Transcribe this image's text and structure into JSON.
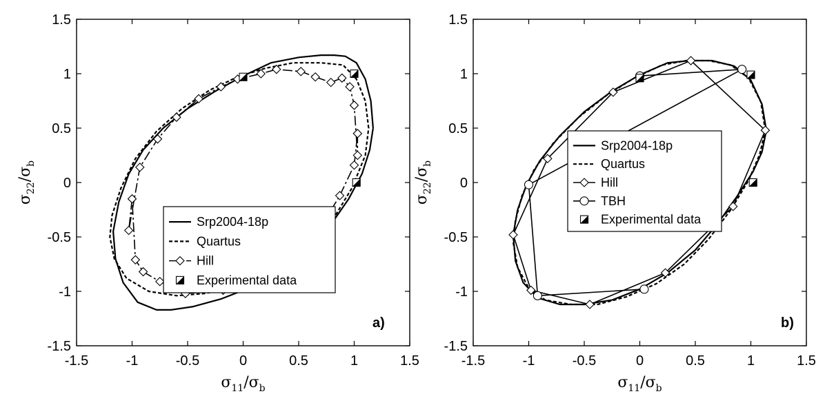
{
  "chart_data": [
    {
      "type": "line",
      "panel_label": "a)",
      "xlabel": "σ11/σb",
      "ylabel": "σ22/σb",
      "xlabel_parts": {
        "sym": "σ",
        "sub1": "11",
        "slash": "/σ",
        "sub2": "b"
      },
      "ylabel_parts": {
        "sym": "σ",
        "sub1": "22",
        "slash": "/σ",
        "sub2": "b"
      },
      "xlim": [
        -1.5,
        1.5
      ],
      "ylim": [
        -1.5,
        1.5
      ],
      "xticks": [
        "-1.5",
        "-1",
        "-0.5",
        "0",
        "0.5",
        "1",
        "1.5"
      ],
      "yticks": [
        "-1.5",
        "-1",
        "-0.5",
        "0",
        "0.5",
        "1",
        "1.5"
      ],
      "grid": false,
      "legend_position": "center-right",
      "series": [
        {
          "name": "Srp2004-18p",
          "style": "solid",
          "marker": "none",
          "x": [
            1.17,
            1.15,
            1.1,
            1.02,
            0.92,
            0.82,
            0.7,
            0.5,
            0.25,
            0.0,
            -0.25,
            -0.5,
            -0.72,
            -0.9,
            -1.03,
            -1.12,
            -1.17,
            -1.15,
            -1.08,
            -0.95,
            -0.78,
            -0.65,
            -0.45,
            -0.2,
            0.05,
            0.3,
            0.55,
            0.78,
            0.95,
            1.07,
            1.14,
            1.17
          ],
          "y": [
            0.5,
            0.75,
            0.95,
            1.1,
            1.16,
            1.17,
            1.17,
            1.15,
            1.1,
            0.98,
            0.84,
            0.68,
            0.5,
            0.3,
            0.08,
            -0.18,
            -0.45,
            -0.7,
            -0.92,
            -1.1,
            -1.17,
            -1.17,
            -1.14,
            -1.07,
            -0.97,
            -0.84,
            -0.65,
            -0.4,
            -0.15,
            0.08,
            0.3,
            0.5
          ]
        },
        {
          "name": "Quartus",
          "style": "dashed",
          "marker": "none",
          "x": [
            1.13,
            1.1,
            1.02,
            0.9,
            0.7,
            0.45,
            0.2,
            -0.05,
            -0.3,
            -0.55,
            -0.78,
            -0.97,
            -1.1,
            -1.18,
            -1.2,
            -1.16,
            -1.05,
            -0.85,
            -0.6,
            -0.35,
            -0.1,
            0.15,
            0.4,
            0.62,
            0.82,
            0.98,
            1.1,
            1.13
          ],
          "y": [
            0.5,
            0.75,
            0.95,
            1.08,
            1.1,
            1.1,
            1.05,
            0.97,
            0.85,
            0.68,
            0.47,
            0.22,
            -0.05,
            -0.3,
            -0.5,
            -0.7,
            -0.88,
            -1.0,
            -1.04,
            -1.02,
            -0.97,
            -0.87,
            -0.73,
            -0.55,
            -0.32,
            -0.05,
            0.25,
            0.5
          ]
        },
        {
          "name": "Hill",
          "style": "dashdot",
          "marker": "diamond",
          "x": [
            1.03,
            1.03,
            1.0,
            0.96,
            0.89,
            0.79,
            0.65,
            0.52,
            0.3,
            0.16,
            -0.05,
            -0.2,
            -0.4,
            -0.6,
            -0.77,
            -0.93,
            -1.03,
            -1.0,
            -0.97,
            -0.9,
            -0.75,
            -0.52,
            -0.18,
            0.16,
            0.46,
            0.7,
            0.87,
            1.0,
            1.03
          ],
          "y": [
            0.45,
            0.25,
            0.71,
            0.88,
            0.96,
            0.92,
            0.97,
            1.02,
            1.04,
            1.0,
            0.95,
            0.88,
            0.77,
            0.6,
            0.4,
            0.14,
            -0.44,
            -0.15,
            -0.71,
            -0.82,
            -0.91,
            -1.02,
            -0.99,
            -0.87,
            -0.66,
            -0.41,
            -0.12,
            0.16,
            0.45
          ]
        },
        {
          "name": "Experimental data",
          "style": "none",
          "marker": "half-square",
          "x": [
            0.0,
            1.0,
            1.02
          ],
          "y": [
            0.97,
            1.0,
            0.0
          ]
        }
      ]
    },
    {
      "type": "line",
      "panel_label": "b)",
      "xlabel": "σ11/σb",
      "ylabel": "σ22/σb",
      "xlabel_parts": {
        "sym": "σ",
        "sub1": "11",
        "slash": "/σ",
        "sub2": "b"
      },
      "ylabel_parts": {
        "sym": "σ",
        "sub1": "22",
        "slash": "/σ",
        "sub2": "b"
      },
      "xlim": [
        -1.5,
        1.5
      ],
      "ylim": [
        -1.5,
        1.5
      ],
      "xticks": [
        "-1.5",
        "-1",
        "-0.5",
        "0",
        "0.5",
        "1",
        "1.5"
      ],
      "yticks": [
        "-1.5",
        "-1",
        "-0.5",
        "0",
        "0.5",
        "1",
        "1.5"
      ],
      "grid": false,
      "legend_position": "center",
      "series": [
        {
          "name": "Srp2004-18p",
          "style": "solid",
          "marker": "none",
          "x": [
            1.14,
            1.1,
            1.0,
            0.85,
            0.65,
            0.45,
            0.25,
            0.0,
            -0.25,
            -0.5,
            -0.72,
            -0.9,
            -1.02,
            -1.1,
            -1.14,
            -1.12,
            -1.05,
            -0.92,
            -0.72,
            -0.5,
            -0.25,
            0.0,
            0.25,
            0.5,
            0.7,
            0.88,
            1.02,
            1.1,
            1.14
          ],
          "y": [
            0.48,
            0.72,
            0.94,
            1.07,
            1.12,
            1.12,
            1.1,
            0.99,
            0.84,
            0.65,
            0.43,
            0.2,
            -0.02,
            -0.25,
            -0.48,
            -0.72,
            -0.92,
            -1.06,
            -1.12,
            -1.12,
            -1.08,
            -0.98,
            -0.83,
            -0.62,
            -0.38,
            -0.12,
            0.1,
            0.28,
            0.48
          ]
        },
        {
          "name": "Quartus",
          "style": "dashed",
          "marker": "none",
          "x": [
            1.13,
            1.09,
            0.98,
            0.82,
            0.62,
            0.42,
            0.2,
            -0.05,
            -0.3,
            -0.55,
            -0.78,
            -0.95,
            -1.06,
            -1.12,
            -1.14,
            -1.1,
            -1.0,
            -0.85,
            -0.62,
            -0.38,
            -0.12,
            0.15,
            0.4,
            0.62,
            0.82,
            0.98,
            1.08,
            1.13
          ],
          "y": [
            0.48,
            0.74,
            0.96,
            1.08,
            1.12,
            1.12,
            1.08,
            0.96,
            0.8,
            0.6,
            0.36,
            0.12,
            -0.12,
            -0.35,
            -0.55,
            -0.78,
            -0.97,
            -1.08,
            -1.12,
            -1.12,
            -1.05,
            -0.93,
            -0.75,
            -0.52,
            -0.25,
            0.02,
            0.26,
            0.48
          ]
        },
        {
          "name": "Hill",
          "style": "solid",
          "marker": "diamond",
          "x": [
            1.13,
            0.46,
            -0.24,
            -0.83,
            -1.14,
            -0.98,
            -0.45,
            0.23,
            0.84,
            1.13
          ],
          "y": [
            0.48,
            1.12,
            0.83,
            0.22,
            -0.48,
            -0.99,
            -1.12,
            -0.83,
            -0.22,
            0.48
          ]
        },
        {
          "name": "TBH",
          "style": "solid",
          "marker": "circle",
          "x": [
            0.0,
            0.92,
            -1.0,
            -0.92,
            0.04
          ],
          "y": [
            0.98,
            1.04,
            -0.02,
            -1.04,
            -0.98
          ]
        },
        {
          "name": "Experimental data",
          "style": "none",
          "marker": "half-square",
          "x": [
            0.0,
            1.0,
            1.02
          ],
          "y": [
            0.96,
            0.99,
            0.0
          ]
        }
      ]
    }
  ]
}
